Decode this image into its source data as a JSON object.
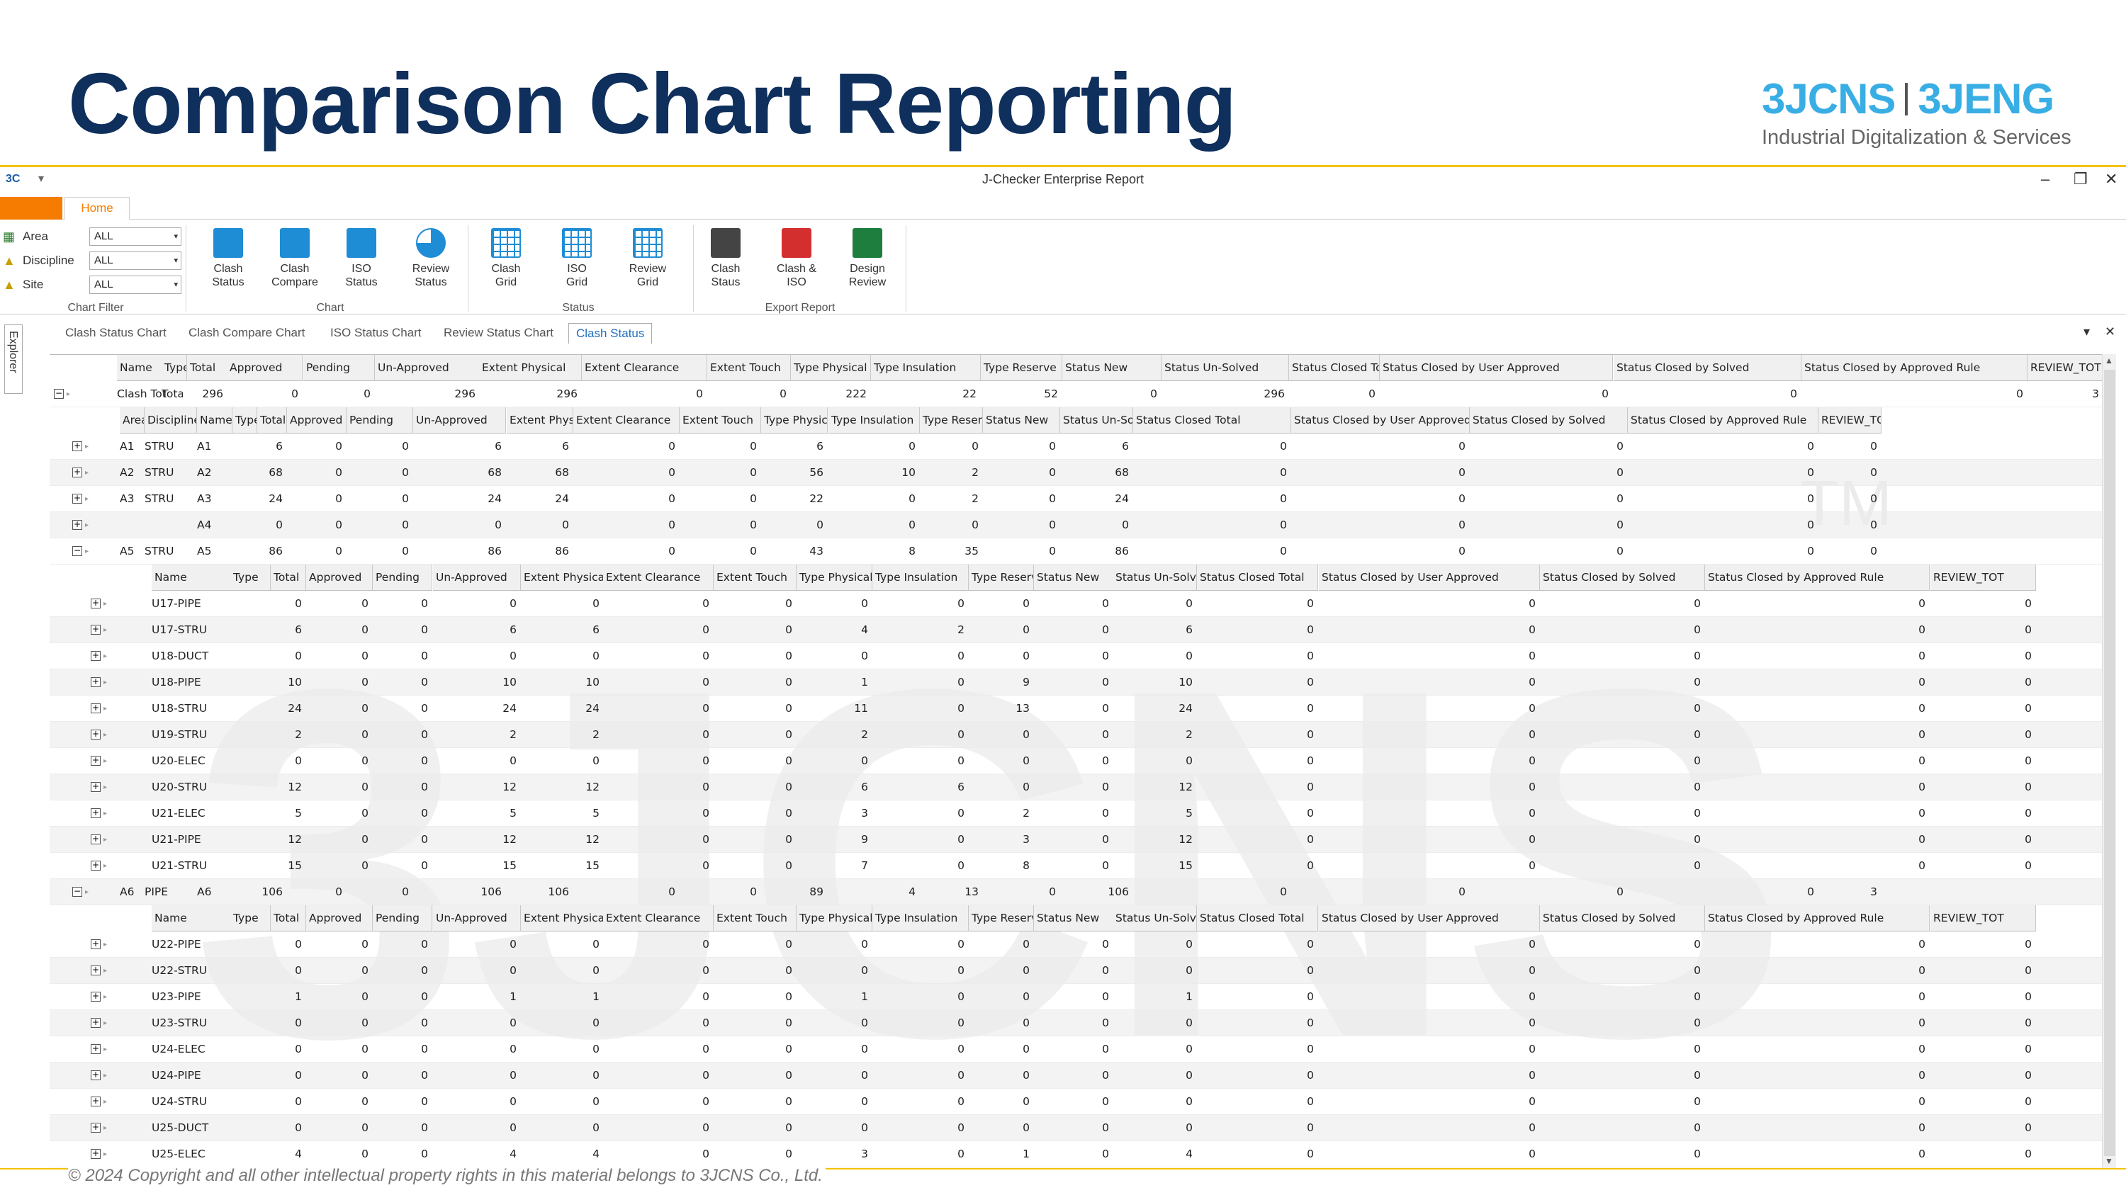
{
  "slide": {
    "title": "Comparison Chart Reporting",
    "logo_left": "3JCNS",
    "logo_right": "3JENG",
    "logo_subtitle": "Industrial Digitalization & Services",
    "copyright": "© 2024 Copyright and all other intellectual property rights in this material belongs to 3JCNS Co., Ltd."
  },
  "window": {
    "title": "J-Checker Enterprise Report",
    "quick_access_icon": "3C",
    "quick_access_menu": "▾",
    "minimize": "–",
    "restore": "❐",
    "close": "✕"
  },
  "ribbon": {
    "home_tab": "Home",
    "filters": [
      {
        "label": "Area",
        "value": "ALL",
        "icon": "area-icon"
      },
      {
        "label": "Discipline",
        "value": "ALL",
        "icon": "discipline-icon"
      },
      {
        "label": "Site",
        "value": "ALL",
        "icon": "site-icon"
      }
    ],
    "filter_group_label": "Chart Filter",
    "chart_group_label": "Chart",
    "status_group_label": "Status",
    "export_group_label": "Export Report",
    "chart_buttons": [
      {
        "line1": "Clash",
        "line2": "Status"
      },
      {
        "line1": "Clash",
        "line2": "Compare"
      },
      {
        "line1": "ISO",
        "line2": "Status"
      },
      {
        "line1": "Review",
        "line2": "Status"
      }
    ],
    "status_buttons": [
      {
        "line1": "Clash",
        "line2": "Grid"
      },
      {
        "line1": "ISO",
        "line2": "Grid"
      },
      {
        "line1": "Review",
        "line2": "Grid"
      }
    ],
    "export_buttons": [
      {
        "line1": "Clash",
        "line2": "Staus"
      },
      {
        "line1": "Clash &",
        "line2": "ISO"
      },
      {
        "line1": "Design",
        "line2": "Review"
      }
    ]
  },
  "explorer_label": "Explorer",
  "doc_tabs": [
    "Clash Status Chart",
    "Clash Compare Chart",
    "ISO Status Chart",
    "Review Status Chart",
    "Clash Status"
  ],
  "doc_tab_menu": "▾",
  "doc_tab_close": "✕",
  "grid": {
    "top_header": [
      "Name",
      "Type",
      "Total",
      "Approved",
      "Pending",
      "Un-Approved",
      "Extent Physical",
      "Extent Clearance",
      "Extent Touch",
      "Type Physical",
      "Type Insulation",
      "Type Reserve",
      "Status New",
      "Status Un-Solved",
      "Status Closed Total",
      "Status Closed by User Approved",
      "Status Closed by Solved",
      "Status Closed by Approved Rule",
      "REVIEW_TOT"
    ],
    "top_row": [
      "Clash Total",
      "Total",
      "296",
      "0",
      "0",
      "296",
      "296",
      "0",
      "0",
      "222",
      "22",
      "52",
      "0",
      "296",
      "0",
      "0",
      "0",
      "0",
      "3"
    ],
    "area_header": [
      "Area",
      "Discipline",
      "Name",
      "Type",
      "Total",
      "Approved",
      "Pending",
      "Un-Approved",
      "Extent Physical",
      "Extent Clearance",
      "Extent Touch",
      "Type Physical",
      "Type Insulation",
      "Type Reserve",
      "Status New",
      "Status Un-Solved",
      "Status Closed Total",
      "Status Closed by User Approved",
      "Status Closed by Solved",
      "Status Closed by Approved Rule",
      "REVIEW_TOT"
    ],
    "area_rows": [
      [
        "A1",
        "STRU",
        "A1",
        "",
        "6",
        "0",
        "0",
        "6",
        "6",
        "0",
        "0",
        "6",
        "0",
        "0",
        "0",
        "6",
        "0",
        "0",
        "0",
        "0",
        "0"
      ],
      [
        "A2",
        "STRU",
        "A2",
        "",
        "68",
        "0",
        "0",
        "68",
        "68",
        "0",
        "0",
        "56",
        "10",
        "2",
        "0",
        "68",
        "0",
        "0",
        "0",
        "0",
        "0"
      ],
      [
        "A3",
        "STRU",
        "A3",
        "",
        "24",
        "0",
        "0",
        "24",
        "24",
        "0",
        "0",
        "22",
        "0",
        "2",
        "0",
        "24",
        "0",
        "0",
        "0",
        "0",
        "0"
      ],
      [
        "",
        "",
        "A4",
        "",
        "0",
        "0",
        "0",
        "0",
        "0",
        "0",
        "0",
        "0",
        "0",
        "0",
        "0",
        "0",
        "0",
        "0",
        "0",
        "0",
        "0"
      ],
      [
        "A5",
        "STRU",
        "A5",
        "",
        "86",
        "0",
        "0",
        "86",
        "86",
        "0",
        "0",
        "43",
        "8",
        "35",
        "0",
        "86",
        "0",
        "0",
        "0",
        "0",
        "0"
      ]
    ],
    "a6_row": [
      "A6",
      "PIPE",
      "A6",
      "",
      "106",
      "0",
      "0",
      "106",
      "106",
      "0",
      "0",
      "89",
      "4",
      "13",
      "0",
      "106",
      "0",
      "0",
      "0",
      "0",
      "3"
    ],
    "unit_header": [
      "Name",
      "Type",
      "Total",
      "Approved",
      "Pending",
      "Un-Approved",
      "Extent Physical",
      "Extent Clearance",
      "Extent Touch",
      "Type Physical",
      "Type Insulation",
      "Type Reserve",
      "Status New",
      "Status Un-Solved",
      "Status Closed Total",
      "Status Closed by User Approved",
      "Status Closed by Solved",
      "Status Closed by Approved Rule",
      "REVIEW_TOT"
    ],
    "a5_units": [
      [
        "U17-PIPE",
        "",
        "0",
        "0",
        "0",
        "0",
        "0",
        "0",
        "0",
        "0",
        "0",
        "0",
        "0",
        "0",
        "0",
        "0",
        "0",
        "0",
        "0"
      ],
      [
        "U17-STRU",
        "",
        "6",
        "0",
        "0",
        "6",
        "6",
        "0",
        "0",
        "4",
        "2",
        "0",
        "0",
        "6",
        "0",
        "0",
        "0",
        "0",
        "0"
      ],
      [
        "U18-DUCT",
        "",
        "0",
        "0",
        "0",
        "0",
        "0",
        "0",
        "0",
        "0",
        "0",
        "0",
        "0",
        "0",
        "0",
        "0",
        "0",
        "0",
        "0"
      ],
      [
        "U18-PIPE",
        "",
        "10",
        "0",
        "0",
        "10",
        "10",
        "0",
        "0",
        "1",
        "0",
        "9",
        "0",
        "10",
        "0",
        "0",
        "0",
        "0",
        "0"
      ],
      [
        "U18-STRU",
        "",
        "24",
        "0",
        "0",
        "24",
        "24",
        "0",
        "0",
        "11",
        "0",
        "13",
        "0",
        "24",
        "0",
        "0",
        "0",
        "0",
        "0"
      ],
      [
        "U19-STRU",
        "",
        "2",
        "0",
        "0",
        "2",
        "2",
        "0",
        "0",
        "2",
        "0",
        "0",
        "0",
        "2",
        "0",
        "0",
        "0",
        "0",
        "0"
      ],
      [
        "U20-ELEC",
        "",
        "0",
        "0",
        "0",
        "0",
        "0",
        "0",
        "0",
        "0",
        "0",
        "0",
        "0",
        "0",
        "0",
        "0",
        "0",
        "0",
        "0"
      ],
      [
        "U20-STRU",
        "",
        "12",
        "0",
        "0",
        "12",
        "12",
        "0",
        "0",
        "6",
        "6",
        "0",
        "0",
        "12",
        "0",
        "0",
        "0",
        "0",
        "0"
      ],
      [
        "U21-ELEC",
        "",
        "5",
        "0",
        "0",
        "5",
        "5",
        "0",
        "0",
        "3",
        "0",
        "2",
        "0",
        "5",
        "0",
        "0",
        "0",
        "0",
        "0"
      ],
      [
        "U21-PIPE",
        "",
        "12",
        "0",
        "0",
        "12",
        "12",
        "0",
        "0",
        "9",
        "0",
        "3",
        "0",
        "12",
        "0",
        "0",
        "0",
        "0",
        "0"
      ],
      [
        "U21-STRU",
        "",
        "15",
        "0",
        "0",
        "15",
        "15",
        "0",
        "0",
        "7",
        "0",
        "8",
        "0",
        "15",
        "0",
        "0",
        "0",
        "0",
        "0"
      ]
    ],
    "a6_units": [
      [
        "U22-PIPE",
        "",
        "0",
        "0",
        "0",
        "0",
        "0",
        "0",
        "0",
        "0",
        "0",
        "0",
        "0",
        "0",
        "0",
        "0",
        "0",
        "0",
        "0"
      ],
      [
        "U22-STRU",
        "",
        "0",
        "0",
        "0",
        "0",
        "0",
        "0",
        "0",
        "0",
        "0",
        "0",
        "0",
        "0",
        "0",
        "0",
        "0",
        "0",
        "0"
      ],
      [
        "U23-PIPE",
        "",
        "1",
        "0",
        "0",
        "1",
        "1",
        "0",
        "0",
        "1",
        "0",
        "0",
        "0",
        "1",
        "0",
        "0",
        "0",
        "0",
        "0"
      ],
      [
        "U23-STRU",
        "",
        "0",
        "0",
        "0",
        "0",
        "0",
        "0",
        "0",
        "0",
        "0",
        "0",
        "0",
        "0",
        "0",
        "0",
        "0",
        "0",
        "0"
      ],
      [
        "U24-ELEC",
        "",
        "0",
        "0",
        "0",
        "0",
        "0",
        "0",
        "0",
        "0",
        "0",
        "0",
        "0",
        "0",
        "0",
        "0",
        "0",
        "0",
        "0"
      ],
      [
        "U24-PIPE",
        "",
        "0",
        "0",
        "0",
        "0",
        "0",
        "0",
        "0",
        "0",
        "0",
        "0",
        "0",
        "0",
        "0",
        "0",
        "0",
        "0",
        "0"
      ],
      [
        "U24-STRU",
        "",
        "0",
        "0",
        "0",
        "0",
        "0",
        "0",
        "0",
        "0",
        "0",
        "0",
        "0",
        "0",
        "0",
        "0",
        "0",
        "0",
        "0"
      ],
      [
        "U25-DUCT",
        "",
        "0",
        "0",
        "0",
        "0",
        "0",
        "0",
        "0",
        "0",
        "0",
        "0",
        "0",
        "0",
        "0",
        "0",
        "0",
        "0",
        "0"
      ],
      [
        "U25-ELEC",
        "",
        "4",
        "0",
        "0",
        "4",
        "4",
        "0",
        "0",
        "3",
        "0",
        "1",
        "0",
        "4",
        "0",
        "0",
        "0",
        "0",
        "0"
      ]
    ]
  },
  "watermark_text": "3JCNS",
  "watermark_tm": "TM",
  "colors": {
    "title": "#0f2f5c",
    "logo": "#39aee4",
    "accent_rule": "#f2c200",
    "file_tab": "#f57c00",
    "active_tab": "#1f6fbd"
  }
}
